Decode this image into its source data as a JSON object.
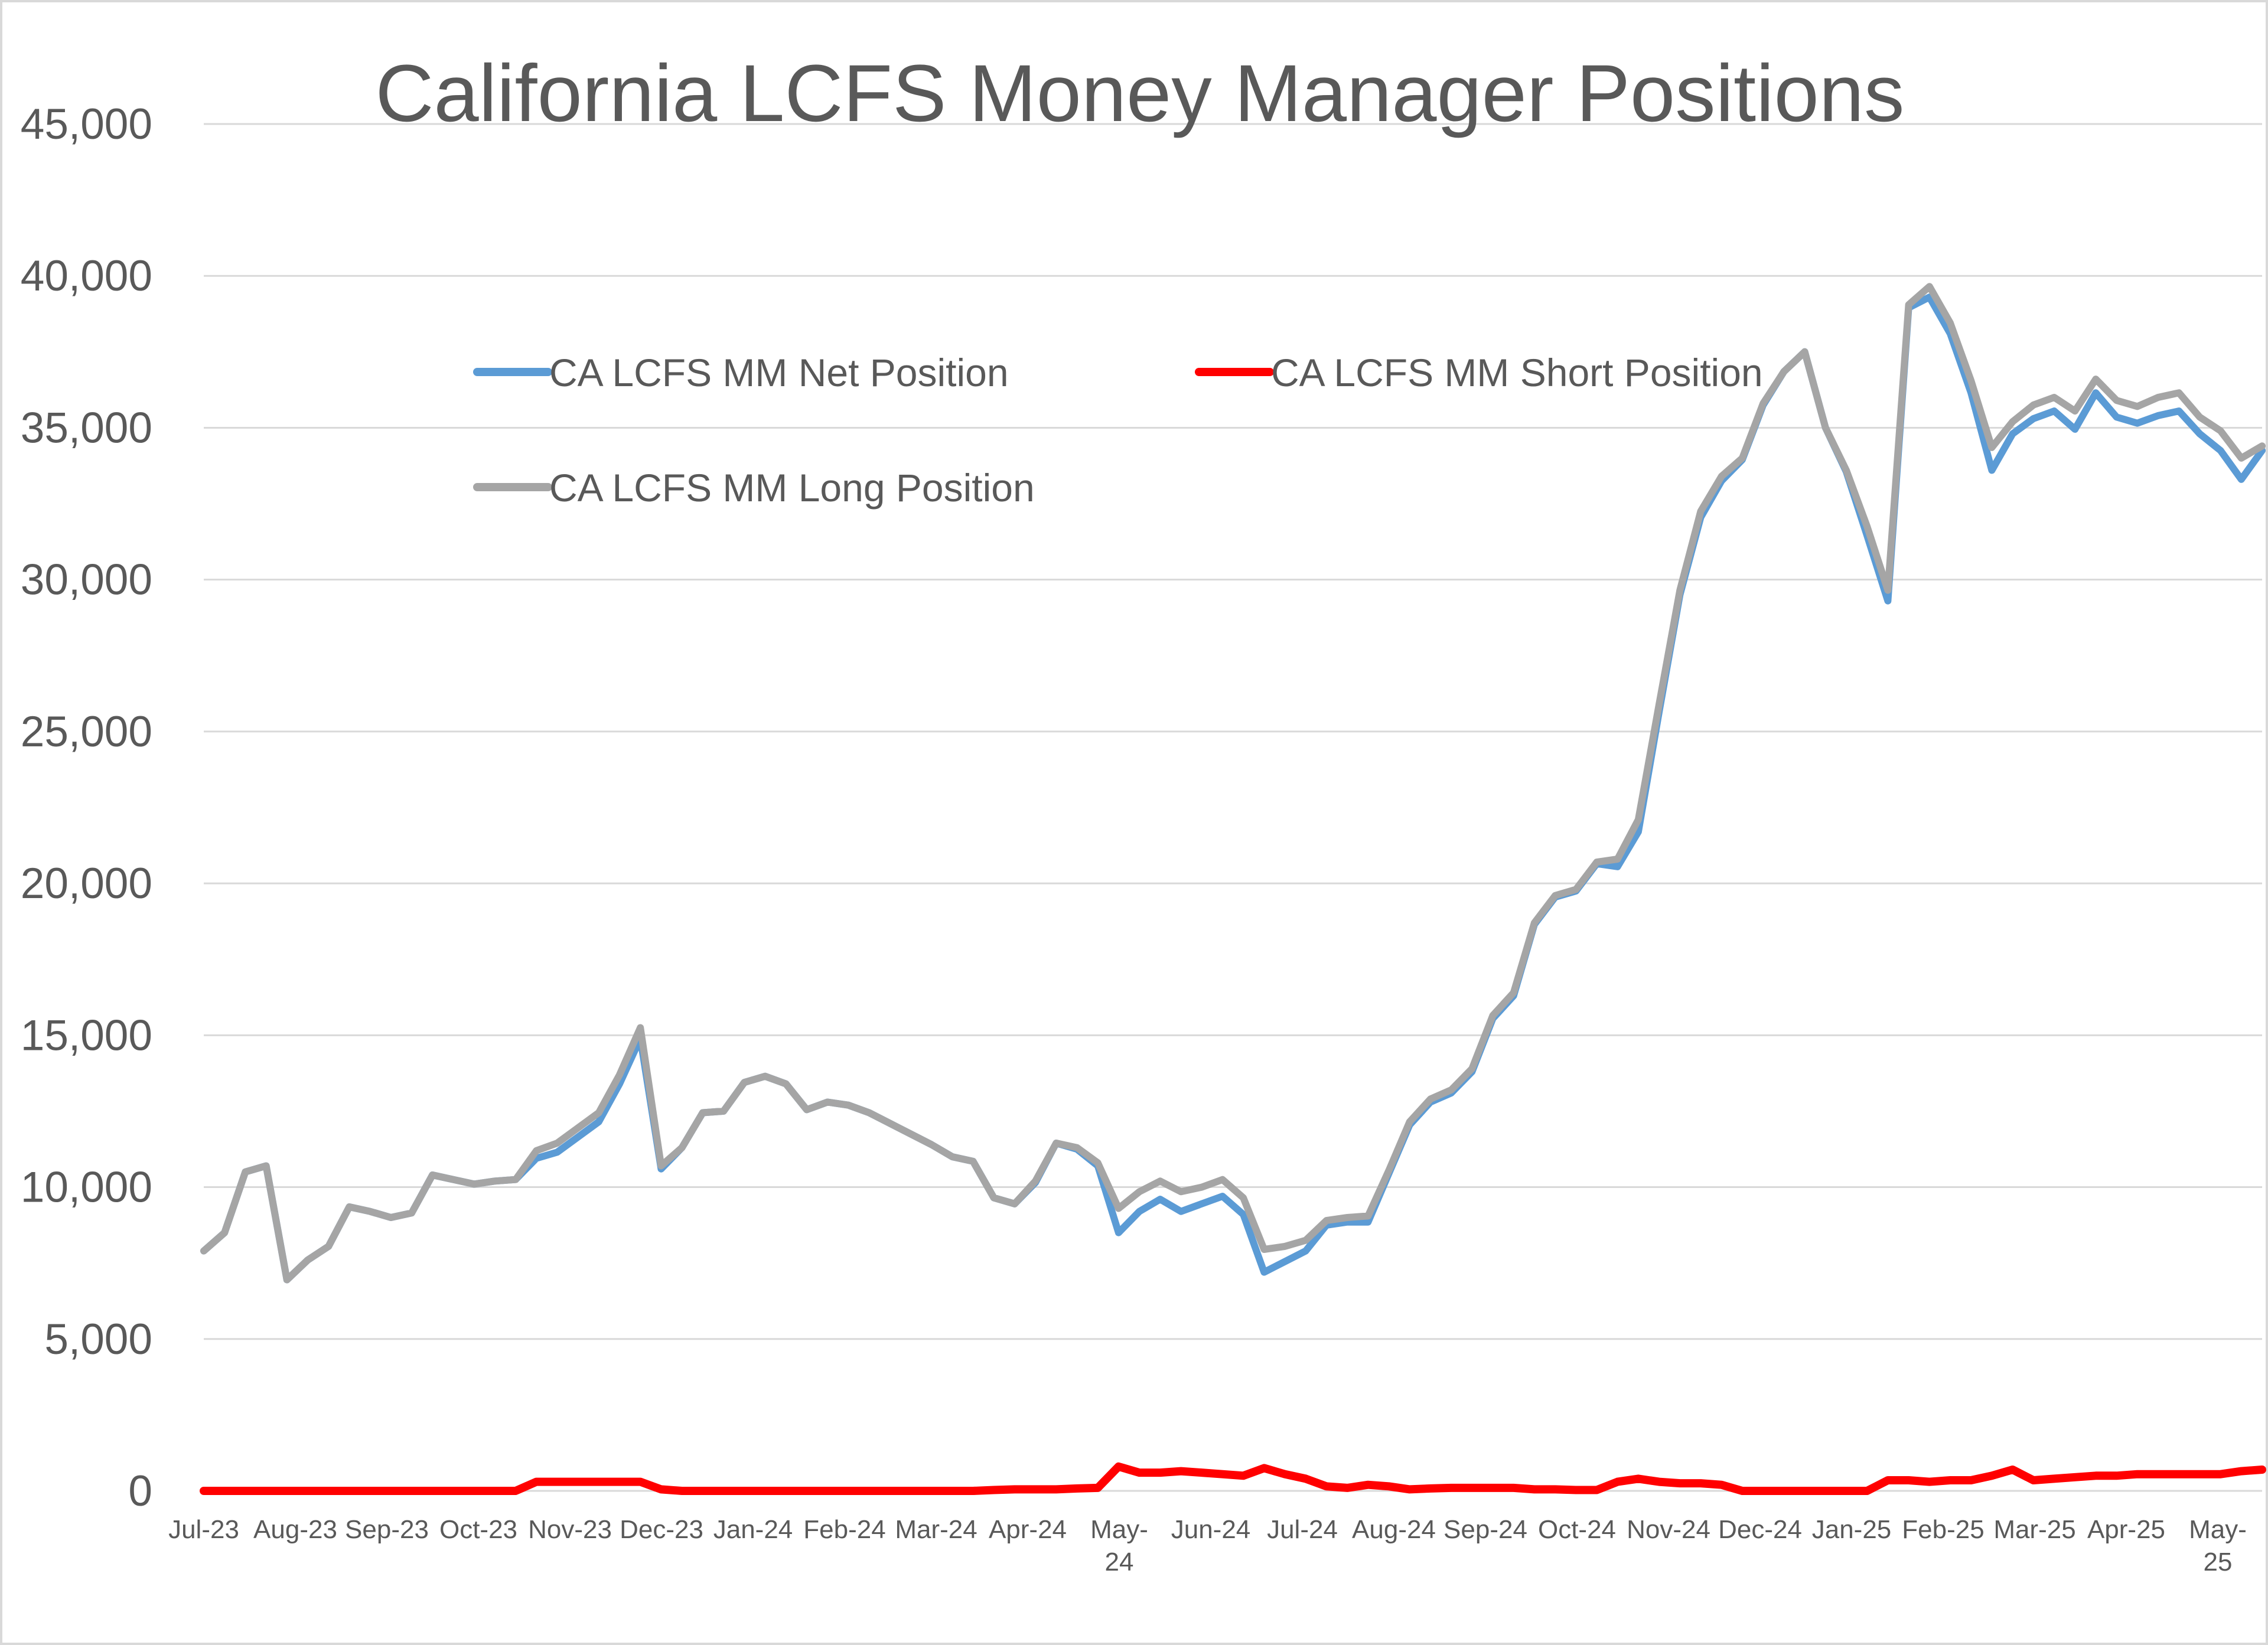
{
  "chart_data": {
    "type": "line",
    "title": "California LCFS Money Manager Positions",
    "xlabel": "",
    "ylabel": "",
    "ylim": [
      0,
      45000
    ],
    "yticks": [
      "0",
      "5,000",
      "10,000",
      "15,000",
      "20,000",
      "25,000",
      "30,000",
      "35,000",
      "40,000",
      "45,000"
    ],
    "ytick_values": [
      0,
      5000,
      10000,
      15000,
      20000,
      25000,
      30000,
      35000,
      40000,
      45000
    ],
    "xtick_labels": [
      "Jul-23",
      "Aug-23",
      "Sep-23",
      "Oct-23",
      "Nov-23",
      "Dec-23",
      "Jan-24",
      "Feb-24",
      "Mar-24",
      "Apr-24",
      "May-24",
      "Jun-24",
      "Jul-24",
      "Aug-24",
      "Sep-24",
      "Oct-24",
      "Nov-24",
      "Dec-24",
      "Jan-25",
      "Feb-25",
      "Mar-25",
      "Apr-25",
      "May-25"
    ],
    "grid": true,
    "legend": "inside-top-left",
    "series": [
      {
        "name": "CA LCFS MM Net Position",
        "color": "#5b9bd5",
        "values": [
          7900,
          8500,
          10500,
          10700,
          6950,
          7600,
          8050,
          9350,
          9200,
          9000,
          9150,
          10400,
          10250,
          10100,
          10200,
          10250,
          10950,
          11150,
          11650,
          12150,
          13400,
          14900,
          10600,
          11300,
          12450,
          12500,
          13450,
          13650,
          13400,
          12550,
          12800,
          12700,
          12450,
          12100,
          11750,
          11400,
          11000,
          10850,
          9650,
          9450,
          10150,
          11450,
          11250,
          10700,
          8500,
          9200,
          9600,
          9200,
          9450,
          9700,
          9100,
          7200,
          7550,
          7900,
          8750,
          8850,
          8850,
          10450,
          12050,
          12800,
          13100,
          13800,
          15550,
          16300,
          18650,
          19550,
          19750,
          20650,
          20550,
          21700,
          25650,
          29500,
          32050,
          33250,
          33950,
          35750,
          36850,
          37500,
          35000,
          33550,
          31450,
          29300,
          38950,
          39300,
          38100,
          36150,
          33600,
          34800,
          35300,
          35550,
          34950,
          36150,
          35350,
          35150,
          35400,
          35550,
          34800,
          34250,
          33300,
          34250
        ]
      },
      {
        "name": "CA LCFS MM Short Position",
        "color": "#ff0000",
        "values": [
          0,
          0,
          0,
          0,
          0,
          0,
          0,
          0,
          0,
          0,
          0,
          0,
          0,
          0,
          0,
          0,
          300,
          300,
          300,
          300,
          300,
          300,
          50,
          0,
          0,
          0,
          0,
          0,
          0,
          0,
          0,
          0,
          0,
          0,
          0,
          0,
          0,
          0,
          30,
          50,
          50,
          50,
          80,
          100,
          800,
          600,
          600,
          650,
          600,
          550,
          500,
          750,
          550,
          400,
          150,
          100,
          200,
          150,
          50,
          80,
          100,
          100,
          100,
          100,
          50,
          50,
          30,
          30,
          300,
          400,
          300,
          250,
          250,
          200,
          0,
          0,
          0,
          0,
          0,
          0,
          0,
          350,
          350,
          300,
          350,
          350,
          500,
          700,
          350,
          400,
          450,
          500,
          500,
          550,
          550,
          550,
          550,
          550,
          650,
          700
        ]
      },
      {
        "name": "CA LCFS MM Long Position",
        "color": "#a5a5a5",
        "values": [
          7900,
          8500,
          10500,
          10700,
          6950,
          7600,
          8050,
          9350,
          9200,
          9000,
          9150,
          10400,
          10250,
          10100,
          10200,
          10250,
          11200,
          11450,
          11950,
          12450,
          13700,
          15250,
          10700,
          11300,
          12450,
          12500,
          13450,
          13650,
          13400,
          12550,
          12800,
          12700,
          12450,
          12100,
          11750,
          11400,
          11000,
          10850,
          9650,
          9450,
          10200,
          11450,
          11300,
          10800,
          9300,
          9850,
          10200,
          9850,
          10000,
          10250,
          9650,
          7950,
          8050,
          8250,
          8900,
          9000,
          9050,
          10550,
          12150,
          12900,
          13200,
          13900,
          15650,
          16400,
          18700,
          19600,
          19800,
          20700,
          20800,
          22100,
          25900,
          29650,
          32250,
          33400,
          34000,
          35800,
          36850,
          37500,
          35000,
          33600,
          31750,
          29650,
          39050,
          39650,
          38450,
          36550,
          34350,
          35200,
          35750,
          36000,
          35550,
          36600,
          35900,
          35700,
          36000,
          36150,
          35350,
          34900,
          34000,
          34400
        ]
      }
    ]
  }
}
